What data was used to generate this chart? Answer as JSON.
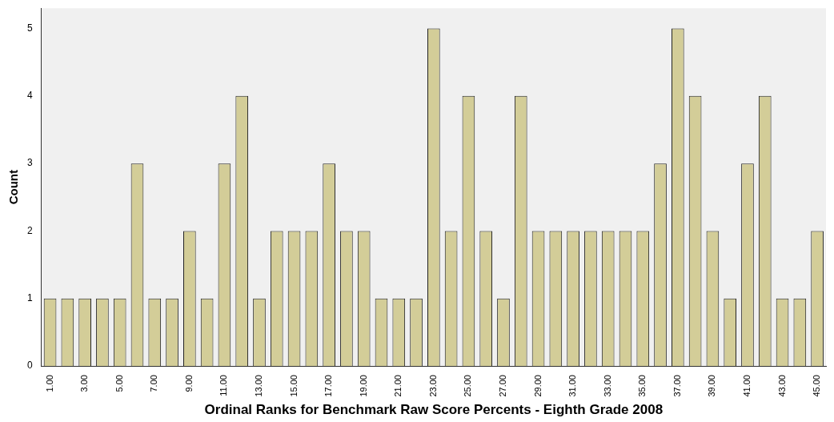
{
  "chart_data": {
    "type": "bar",
    "xlabel": "Ordinal Ranks for Benchmark Raw Score Percents - Eighth Grade 2008",
    "ylabel": "Count",
    "categories": [
      "1.00",
      null,
      "3.00",
      null,
      "5.00",
      null,
      "7.00",
      null,
      "9.00",
      null,
      "11.00",
      null,
      "13.00",
      null,
      "15.00",
      null,
      "17.00",
      null,
      "19.00",
      null,
      "21.00",
      null,
      "23.00",
      null,
      "25.00",
      null,
      "27.00",
      null,
      "29.00",
      null,
      "31.00",
      null,
      "33.00",
      null,
      "35.00",
      null,
      "37.00",
      null,
      "39.00",
      null,
      "41.00",
      null,
      "43.00",
      null,
      "45.00"
    ],
    "values": [
      1,
      1,
      1,
      1,
      1,
      3,
      1,
      1,
      2,
      1,
      3,
      4,
      1,
      2,
      2,
      2,
      3,
      2,
      2,
      1,
      1,
      1,
      5,
      2,
      4,
      2,
      1,
      4,
      2,
      2,
      2,
      2,
      2,
      2,
      2,
      3,
      5,
      4,
      2,
      1,
      3,
      4,
      1,
      1,
      2
    ],
    "color": "#d3cd98",
    "ylim": [
      0,
      5.3
    ],
    "yticks": [
      0,
      1,
      2,
      3,
      4,
      5
    ],
    "grid": false,
    "legend": false
  }
}
